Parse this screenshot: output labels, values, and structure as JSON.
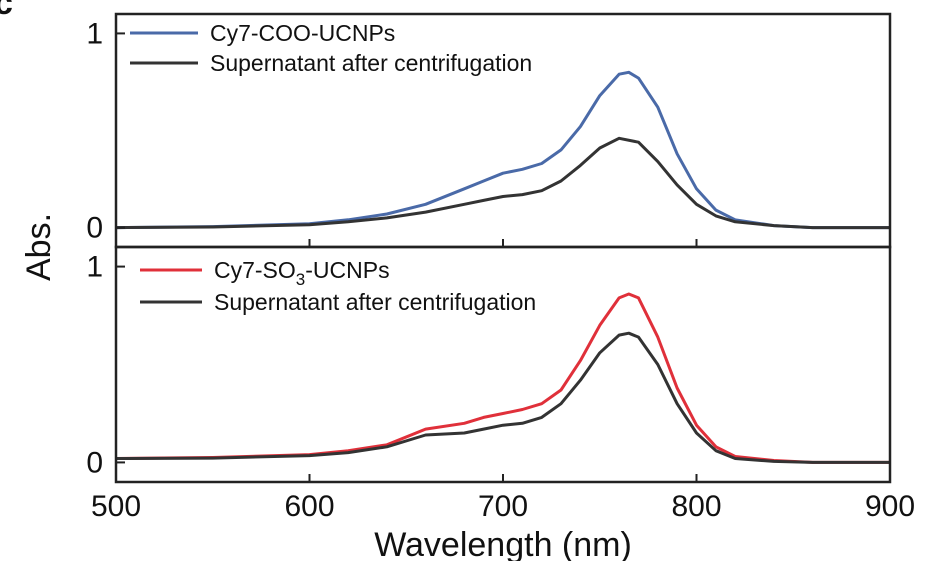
{
  "panel_letter": "c",
  "chart_data": [
    {
      "type": "line",
      "xlabel": "Wavelength (nm)",
      "ylabel": "Abs.",
      "xlim": [
        500,
        900
      ],
      "ylim": [
        -0.1,
        1.1
      ],
      "x_ticks": [
        500,
        600,
        700,
        800,
        900
      ],
      "y_ticks": [
        0,
        1
      ],
      "legend_position": "top-left",
      "series": [
        {
          "name": "Cy7-COO-UCNPs",
          "color": "#4a6aa8",
          "x": [
            500,
            550,
            600,
            620,
            640,
            660,
            680,
            690,
            700,
            710,
            720,
            730,
            740,
            750,
            760,
            765,
            770,
            780,
            790,
            800,
            810,
            820,
            840,
            860,
            900
          ],
          "y": [
            0.0,
            0.005,
            0.02,
            0.04,
            0.07,
            0.12,
            0.2,
            0.24,
            0.28,
            0.3,
            0.33,
            0.4,
            0.52,
            0.68,
            0.79,
            0.8,
            0.77,
            0.62,
            0.38,
            0.2,
            0.09,
            0.04,
            0.01,
            0.0,
            0.0
          ]
        },
        {
          "name": "Supernatant after centrifugation",
          "color": "#333333",
          "x": [
            500,
            550,
            600,
            620,
            640,
            660,
            680,
            690,
            700,
            710,
            720,
            730,
            740,
            750,
            760,
            770,
            780,
            790,
            800,
            810,
            820,
            840,
            860,
            900
          ],
          "y": [
            0.0,
            0.003,
            0.015,
            0.03,
            0.05,
            0.08,
            0.12,
            0.14,
            0.16,
            0.17,
            0.19,
            0.24,
            0.32,
            0.41,
            0.46,
            0.44,
            0.34,
            0.22,
            0.12,
            0.06,
            0.03,
            0.01,
            0.0,
            0.0
          ]
        }
      ]
    },
    {
      "type": "line",
      "xlabel": "Wavelength (nm)",
      "ylabel": "Abs.",
      "xlim": [
        500,
        900
      ],
      "ylim": [
        -0.1,
        1.1
      ],
      "x_ticks": [
        500,
        600,
        700,
        800,
        900
      ],
      "y_ticks": [
        0,
        1
      ],
      "legend_position": "top-left",
      "series": [
        {
          "name": "Cy7-SO3-UCNPs",
          "name_parts": [
            "Cy7-SO",
            "3",
            "-UCNPs"
          ],
          "color": "#e0303a",
          "x": [
            500,
            550,
            600,
            620,
            640,
            660,
            680,
            690,
            700,
            710,
            720,
            730,
            740,
            750,
            760,
            765,
            770,
            780,
            790,
            800,
            810,
            820,
            840,
            860,
            900
          ],
          "y": [
            0.02,
            0.025,
            0.04,
            0.06,
            0.09,
            0.17,
            0.2,
            0.23,
            0.25,
            0.27,
            0.3,
            0.37,
            0.52,
            0.7,
            0.84,
            0.86,
            0.84,
            0.64,
            0.38,
            0.19,
            0.08,
            0.03,
            0.01,
            0.0,
            0.0
          ]
        },
        {
          "name": "Supernatant after centrifugation",
          "color": "#333333",
          "x": [
            500,
            550,
            600,
            620,
            640,
            660,
            680,
            690,
            700,
            710,
            720,
            730,
            740,
            750,
            760,
            765,
            770,
            780,
            790,
            800,
            810,
            820,
            840,
            860,
            900
          ],
          "y": [
            0.02,
            0.022,
            0.035,
            0.05,
            0.08,
            0.14,
            0.15,
            0.17,
            0.19,
            0.2,
            0.23,
            0.3,
            0.42,
            0.56,
            0.65,
            0.66,
            0.64,
            0.5,
            0.3,
            0.15,
            0.06,
            0.02,
            0.005,
            0.0,
            0.0
          ]
        }
      ]
    }
  ]
}
